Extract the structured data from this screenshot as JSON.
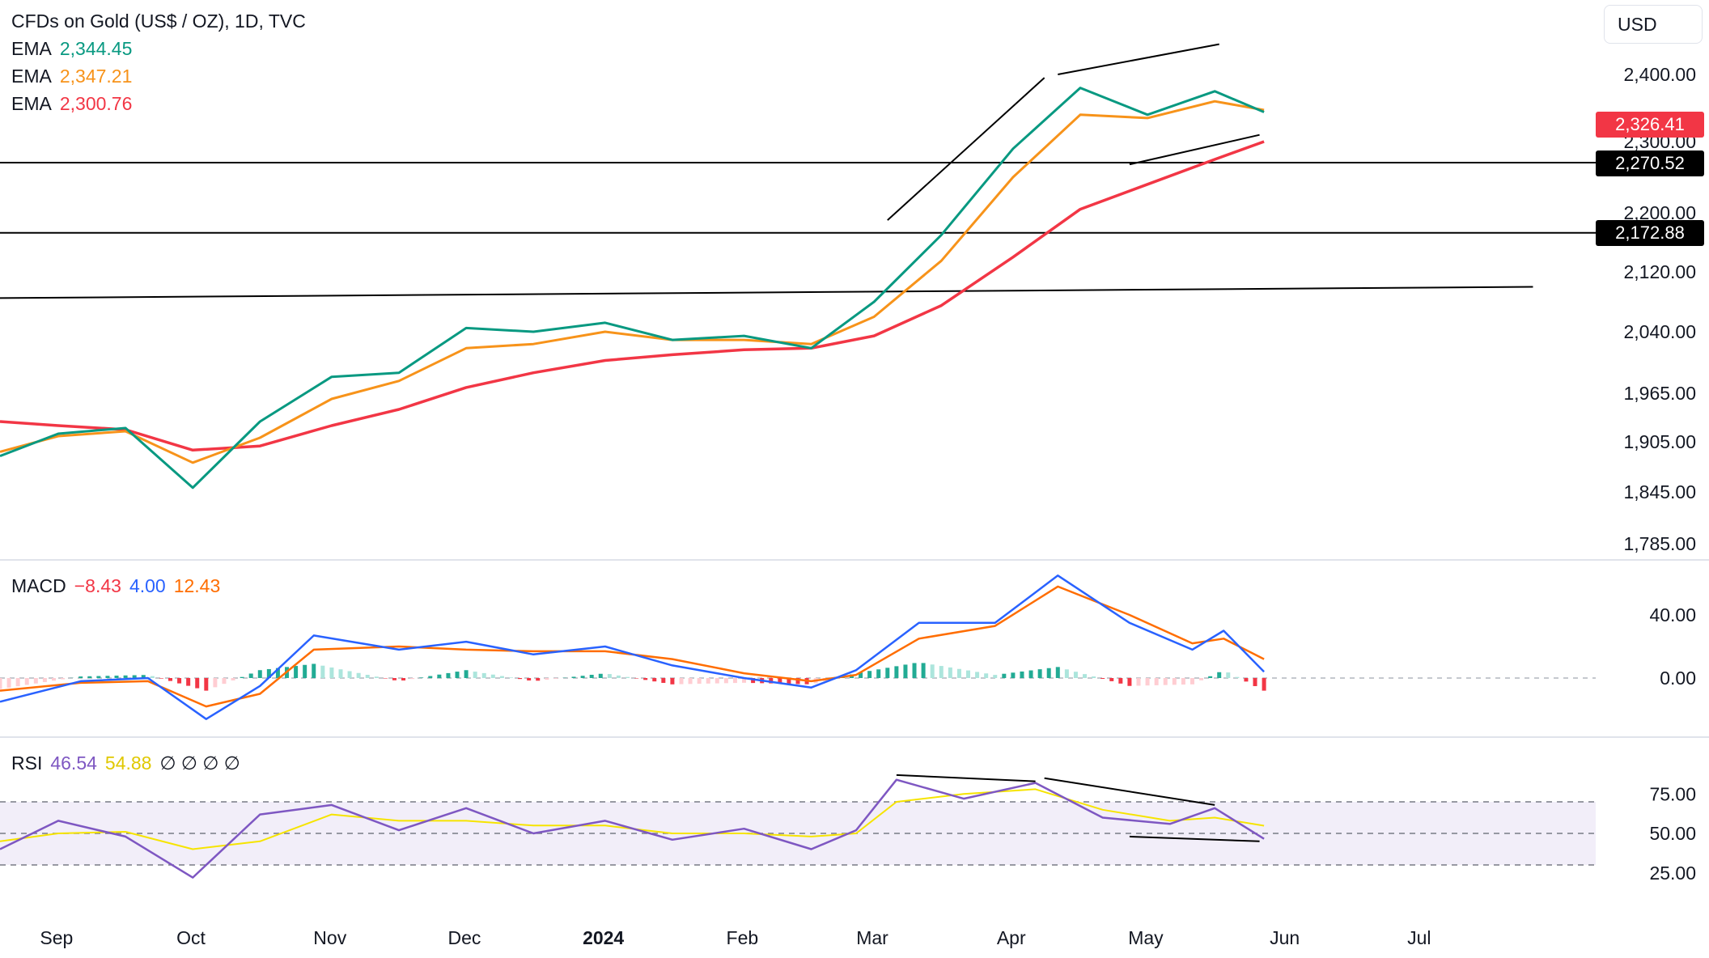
{
  "header": {
    "symbol": "CFDs on Gold (US$ / OZ), 1D, TVC",
    "currency_button": "USD"
  },
  "indicators": {
    "ema_fast": {
      "label": "EMA",
      "value": "2,344.45",
      "color": "#089981"
    },
    "ema_mid": {
      "label": "EMA",
      "value": "2,347.21",
      "color": "#f7931a"
    },
    "ema_slow": {
      "label": "EMA",
      "value": "2,300.76",
      "color": "#f23645"
    },
    "macd": {
      "label": "MACD",
      "hist": "−8.43",
      "macd": "4.00",
      "signal": "12.43",
      "hist_color": "#f23645",
      "macd_color": "#2962ff",
      "signal_color": "#ff6d00"
    },
    "rsi": {
      "label": "RSI",
      "value": "46.54",
      "ma": "54.88",
      "empty": "∅ ∅ ∅ ∅",
      "value_color": "#7e57c2",
      "ma_color": "#f6e400"
    }
  },
  "price_tags": {
    "last": "2,326.41",
    "level_a": "2,270.52",
    "level_b": "2,172.88"
  },
  "chart_data": {
    "type": "line",
    "title": "CFDs on Gold (US$ / OZ), 1D, TVC",
    "price_axis_ticks": [
      "2,400.00",
      "2,300.00",
      "2,200.00",
      "2,120.00",
      "2,040.00",
      "1,965.00",
      "1,905.00",
      "1,845.00",
      "1,785.00"
    ],
    "macd_axis_ticks": [
      "40.00",
      "0.00"
    ],
    "rsi_axis_ticks": [
      "75.00",
      "50.00",
      "25.00"
    ],
    "time_axis": [
      "Sep",
      "Oct",
      "Nov",
      "Dec",
      "2024",
      "Feb",
      "Mar",
      "Apr",
      "May",
      "Jun",
      "Jul"
    ],
    "price_range": [
      1785,
      2430
    ],
    "horizontal_levels": [
      2270.52,
      2172.88
    ],
    "series": [
      {
        "name": "EMA",
        "color": "#089981",
        "x": [
          "2023-08-23",
          "2023-09-05",
          "2023-09-20",
          "2023-10-05",
          "2023-10-20",
          "2023-11-05",
          "2023-11-20",
          "2023-12-05",
          "2023-12-20",
          "2024-01-05",
          "2024-01-20",
          "2024-02-05",
          "2024-02-20",
          "2024-03-05",
          "2024-03-20",
          "2024-04-05",
          "2024-04-20",
          "2024-05-05",
          "2024-05-20",
          "2024-05-31"
        ],
        "values": [
          1888,
          1915,
          1922,
          1850,
          1930,
          1985,
          1990,
          2045,
          2040,
          2052,
          2030,
          2035,
          2020,
          2080,
          2170,
          2290,
          2380,
          2340,
          2375,
          2344
        ]
      },
      {
        "name": "EMA",
        "color": "#f7931a",
        "x": [
          "2023-08-23",
          "2023-09-05",
          "2023-09-20",
          "2023-10-05",
          "2023-10-20",
          "2023-11-05",
          "2023-11-20",
          "2023-12-05",
          "2023-12-20",
          "2024-01-05",
          "2024-01-20",
          "2024-02-05",
          "2024-02-20",
          "2024-03-05",
          "2024-03-20",
          "2024-04-05",
          "2024-04-20",
          "2024-05-05",
          "2024-05-20",
          "2024-05-31"
        ],
        "values": [
          1893,
          1912,
          1918,
          1880,
          1910,
          1958,
          1980,
          2020,
          2025,
          2040,
          2030,
          2030,
          2025,
          2060,
          2135,
          2250,
          2340,
          2335,
          2360,
          2347
        ]
      },
      {
        "name": "EMA",
        "color": "#f23645",
        "x": [
          "2023-08-23",
          "2023-09-05",
          "2023-09-20",
          "2023-10-05",
          "2023-10-20",
          "2023-11-05",
          "2023-11-20",
          "2023-12-05",
          "2023-12-20",
          "2024-01-05",
          "2024-01-20",
          "2024-02-05",
          "2024-02-20",
          "2024-03-05",
          "2024-03-20",
          "2024-04-05",
          "2024-04-20",
          "2024-05-05",
          "2024-05-20",
          "2024-05-31"
        ],
        "values": [
          1930,
          1925,
          1920,
          1895,
          1900,
          1925,
          1945,
          1972,
          1990,
          2005,
          2012,
          2018,
          2020,
          2035,
          2075,
          2140,
          2205,
          2240,
          2275,
          2300
        ]
      },
      {
        "name": "MACD",
        "color": "#2962ff",
        "x": [
          "2023-08-23",
          "2023-09-10",
          "2023-09-25",
          "2023-10-08",
          "2023-10-20",
          "2023-11-01",
          "2023-11-20",
          "2023-12-05",
          "2023-12-20",
          "2024-01-05",
          "2024-01-20",
          "2024-02-05",
          "2024-02-20",
          "2024-03-01",
          "2024-03-15",
          "2024-04-01",
          "2024-04-15",
          "2024-05-01",
          "2024-05-15",
          "2024-05-22",
          "2024-05-31"
        ],
        "values": [
          -15,
          -2,
          0,
          -26,
          -5,
          27,
          18,
          23,
          15,
          20,
          8,
          0,
          -6,
          5,
          35,
          35,
          65,
          35,
          18,
          30,
          4
        ]
      },
      {
        "name": "Signal",
        "color": "#ff6d00",
        "x": [
          "2023-08-23",
          "2023-09-10",
          "2023-09-25",
          "2023-10-08",
          "2023-10-20",
          "2023-11-01",
          "2023-11-20",
          "2023-12-05",
          "2023-12-20",
          "2024-01-05",
          "2024-01-20",
          "2024-02-05",
          "2024-02-20",
          "2024-03-01",
          "2024-03-15",
          "2024-04-01",
          "2024-04-15",
          "2024-05-01",
          "2024-05-15",
          "2024-05-22",
          "2024-05-31"
        ],
        "values": [
          -8,
          -3,
          -2,
          -18,
          -10,
          18,
          20,
          18,
          17,
          17,
          12,
          3,
          -2,
          2,
          25,
          33,
          58,
          40,
          22,
          25,
          12
        ]
      },
      {
        "name": "RSI",
        "color": "#7e57c2",
        "x": [
          "2023-08-23",
          "2023-09-05",
          "2023-09-20",
          "2023-10-05",
          "2023-10-20",
          "2023-11-05",
          "2023-11-20",
          "2023-12-05",
          "2023-12-20",
          "2024-01-05",
          "2024-01-20",
          "2024-02-05",
          "2024-02-20",
          "2024-03-01",
          "2024-03-10",
          "2024-03-25",
          "2024-04-10",
          "2024-04-25",
          "2024-05-10",
          "2024-05-20",
          "2024-05-31"
        ],
        "values": [
          40,
          58,
          48,
          22,
          62,
          68,
          52,
          66,
          50,
          58,
          46,
          53,
          40,
          52,
          84,
          72,
          82,
          60,
          56,
          66,
          46.54
        ]
      },
      {
        "name": "RSI MA",
        "color": "#f6e400",
        "x": [
          "2023-08-23",
          "2023-09-05",
          "2023-09-20",
          "2023-10-05",
          "2023-10-20",
          "2023-11-05",
          "2023-11-20",
          "2023-12-05",
          "2023-12-20",
          "2024-01-05",
          "2024-01-20",
          "2024-02-05",
          "2024-02-20",
          "2024-03-01",
          "2024-03-10",
          "2024-03-25",
          "2024-04-10",
          "2024-04-25",
          "2024-05-10",
          "2024-05-20",
          "2024-05-31"
        ],
        "values": [
          45,
          50,
          51,
          40,
          45,
          62,
          58,
          58,
          55,
          55,
          50,
          50,
          48,
          50,
          70,
          75,
          78,
          65,
          58,
          60,
          54.88
        ]
      }
    ],
    "rsi_levels": [
      70,
      50,
      30
    ],
    "grid": false
  }
}
